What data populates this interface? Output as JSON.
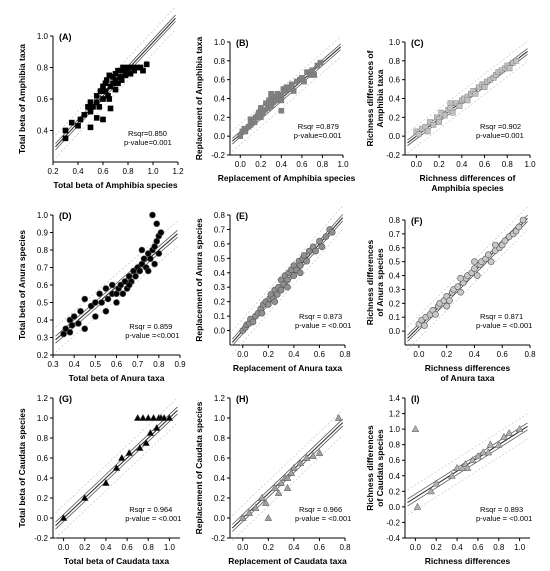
{
  "chart_data": [
    {
      "type": "scatter",
      "panel_label": "(A)",
      "xlabel": "Total beta of Amphibia species",
      "ylabel": "Total beta of  Amphibia taxa",
      "xlim": [
        0.2,
        1.2
      ],
      "ylim": [
        0.2,
        1.0
      ],
      "xticks": [
        "0.2",
        "0.4",
        "0.6",
        "0.8",
        "1.0",
        "1.2"
      ],
      "yticks": [
        "0.4",
        "0.6",
        "0.8",
        "1.0"
      ],
      "stats": [
        "Rsqr=0.850",
        "p-value=0.001"
      ],
      "marker": "square",
      "color": "#000000",
      "fit": {
        "slope": 0.85,
        "intercept": 0.11
      },
      "x": [
        0.3,
        0.3,
        0.35,
        0.4,
        0.42,
        0.45,
        0.48,
        0.5,
        0.5,
        0.52,
        0.55,
        0.55,
        0.55,
        0.57,
        0.58,
        0.6,
        0.6,
        0.62,
        0.62,
        0.63,
        0.64,
        0.65,
        0.65,
        0.66,
        0.68,
        0.68,
        0.7,
        0.7,
        0.7,
        0.72,
        0.72,
        0.74,
        0.75,
        0.75,
        0.76,
        0.78,
        0.78,
        0.8,
        0.8,
        0.82,
        0.84,
        0.85,
        0.88,
        0.9,
        0.92,
        0.95,
        0.6,
        0.66,
        0.5
      ],
      "y": [
        0.35,
        0.4,
        0.45,
        0.43,
        0.47,
        0.5,
        0.55,
        0.52,
        0.58,
        0.55,
        0.58,
        0.62,
        0.48,
        0.55,
        0.65,
        0.6,
        0.68,
        0.65,
        0.7,
        0.72,
        0.62,
        0.6,
        0.75,
        0.68,
        0.7,
        0.74,
        0.72,
        0.76,
        0.66,
        0.7,
        0.78,
        0.74,
        0.72,
        0.78,
        0.8,
        0.75,
        0.79,
        0.77,
        0.8,
        0.76,
        0.8,
        0.78,
        0.8,
        0.8,
        0.78,
        0.82,
        0.47,
        0.54,
        0.42
      ]
    },
    {
      "type": "scatter",
      "panel_label": "(B)",
      "xlabel": "Replacement of  Amphibia species",
      "ylabel": "Replacement of Amphibia taxa",
      "xlim": [
        -0.1,
        1.0
      ],
      "ylim": [
        -0.2,
        1.0
      ],
      "xticks": [
        "0.0",
        "0.2",
        "0.4",
        "0.6",
        "0.8",
        "1.0"
      ],
      "yticks": [
        "-0.2",
        "0.0",
        "0.2",
        "0.4",
        "0.6",
        "0.8",
        "1.0"
      ],
      "stats": [
        "Rsqr =0.879",
        "p-value=0.001"
      ],
      "marker": "square",
      "color": "#808080",
      "fit": {
        "slope": 0.95,
        "intercept": 0.02
      },
      "x": [
        0.0,
        0.02,
        0.04,
        0.05,
        0.08,
        0.1,
        0.1,
        0.12,
        0.14,
        0.15,
        0.17,
        0.18,
        0.2,
        0.2,
        0.22,
        0.24,
        0.25,
        0.27,
        0.28,
        0.3,
        0.3,
        0.32,
        0.33,
        0.35,
        0.36,
        0.38,
        0.4,
        0.4,
        0.42,
        0.44,
        0.45,
        0.48,
        0.5,
        0.52,
        0.55,
        0.58,
        0.6,
        0.62,
        0.65,
        0.68,
        0.7,
        0.72,
        0.75,
        0.78,
        0.4,
        0.3
      ],
      "y": [
        0.0,
        0.05,
        0.08,
        0.05,
        0.1,
        0.12,
        0.18,
        0.15,
        0.15,
        0.2,
        0.22,
        0.25,
        0.2,
        0.3,
        0.25,
        0.28,
        0.35,
        0.3,
        0.38,
        0.4,
        0.32,
        0.36,
        0.42,
        0.38,
        0.45,
        0.42,
        0.44,
        0.38,
        0.5,
        0.48,
        0.52,
        0.5,
        0.55,
        0.48,
        0.58,
        0.6,
        0.62,
        0.58,
        0.68,
        0.65,
        0.7,
        0.65,
        0.75,
        0.78,
        0.27,
        0.45
      ]
    },
    {
      "type": "scatter",
      "panel_label": "(C)",
      "xlabel": "Richness differences of Amphibia species",
      "xlabel_lines": [
        "Richness differences of",
        "Amphibia species"
      ],
      "ylabel": "Richness differences of Amphibia taxa",
      "ylabel_lines": [
        "Richness differences of",
        "Amphibia taxa"
      ],
      "xlim": [
        -0.1,
        1.0
      ],
      "ylim": [
        -0.2,
        1.0
      ],
      "xticks": [
        "0.0",
        "0.2",
        "0.4",
        "0.6",
        "0.8",
        "1.0"
      ],
      "yticks": [
        "-0.2",
        "0.0",
        "0.2",
        "0.4",
        "0.6",
        "0.8",
        "1.0"
      ],
      "stats": [
        "Rsqr =0.902",
        "p-value=0.001"
      ],
      "marker": "square",
      "color": "#c0c0c0",
      "fit": {
        "slope": 0.92,
        "intercept": 0.0
      },
      "x": [
        0.0,
        0.02,
        0.05,
        0.08,
        0.1,
        0.12,
        0.15,
        0.18,
        0.2,
        0.22,
        0.25,
        0.28,
        0.3,
        0.32,
        0.35,
        0.38,
        0.4,
        0.42,
        0.45,
        0.48,
        0.5,
        0.52,
        0.55,
        0.58,
        0.6,
        0.62,
        0.65,
        0.68,
        0.7,
        0.72,
        0.75,
        0.78,
        0.8,
        0.82,
        0.85,
        0.88,
        0.3,
        0.45,
        0.6,
        0.2
      ],
      "y": [
        0.05,
        0.02,
        0.08,
        0.1,
        0.05,
        0.15,
        0.12,
        0.2,
        0.18,
        0.25,
        0.22,
        0.28,
        0.3,
        0.25,
        0.35,
        0.32,
        0.38,
        0.4,
        0.42,
        0.45,
        0.48,
        0.45,
        0.52,
        0.55,
        0.55,
        0.58,
        0.6,
        0.62,
        0.65,
        0.68,
        0.7,
        0.72,
        0.75,
        0.72,
        0.78,
        0.8,
        0.35,
        0.38,
        0.52,
        0.15
      ]
    },
    {
      "type": "scatter",
      "panel_label": "(D)",
      "xlabel": "Total beta of Anura taxa",
      "ylabel": "Total beta of Anura species",
      "xlim": [
        0.3,
        0.9
      ],
      "ylim": [
        0.2,
        1.0
      ],
      "xticks": [
        "0.3",
        "0.4",
        "0.5",
        "0.6",
        "0.7",
        "0.8",
        "0.9"
      ],
      "yticks": [
        "0.2",
        "0.3",
        "0.4",
        "0.5",
        "0.6",
        "0.7",
        "0.8",
        "0.9",
        "1.0"
      ],
      "stats": [
        "Rsqr = 0.859",
        "p-value =<0.001"
      ],
      "marker": "circle",
      "color": "#000000",
      "fit": {
        "slope": 1.05,
        "intercept": -0.04
      },
      "x": [
        0.35,
        0.36,
        0.38,
        0.39,
        0.4,
        0.42,
        0.43,
        0.45,
        0.48,
        0.5,
        0.52,
        0.53,
        0.55,
        0.56,
        0.58,
        0.58,
        0.6,
        0.61,
        0.62,
        0.63,
        0.64,
        0.65,
        0.66,
        0.67,
        0.68,
        0.69,
        0.7,
        0.71,
        0.72,
        0.73,
        0.74,
        0.75,
        0.75,
        0.76,
        0.77,
        0.78,
        0.78,
        0.79,
        0.8,
        0.8,
        0.81,
        0.79,
        0.77,
        0.72,
        0.66,
        0.6,
        0.55,
        0.5,
        0.45,
        0.38
      ],
      "y": [
        0.32,
        0.35,
        0.4,
        0.37,
        0.42,
        0.38,
        0.45,
        0.52,
        0.48,
        0.5,
        0.55,
        0.5,
        0.58,
        0.52,
        0.55,
        0.6,
        0.55,
        0.58,
        0.6,
        0.55,
        0.62,
        0.58,
        0.65,
        0.62,
        0.68,
        0.65,
        0.7,
        0.68,
        0.72,
        0.75,
        0.7,
        0.78,
        0.68,
        0.75,
        0.8,
        0.82,
        0.72,
        0.85,
        0.88,
        0.78,
        0.9,
        0.95,
        1.0,
        0.8,
        0.6,
        0.5,
        0.45,
        0.42,
        0.35,
        0.33
      ]
    },
    {
      "type": "scatter",
      "panel_label": "(E)",
      "xlabel": "Replacement of Anura taxa",
      "ylabel": "Replacement of Anura species",
      "xlim": [
        -0.1,
        0.8
      ],
      "ylim": [
        -0.1,
        0.8
      ],
      "xticks": [
        "0.0",
        "0.2",
        "0.4",
        "0.6",
        "0.8"
      ],
      "yticks": [
        "0.0",
        "0.1",
        "0.2",
        "0.3",
        "0.4",
        "0.5",
        "0.6",
        "0.7",
        "0.8"
      ],
      "stats": [
        "Rsqr = 0.873",
        "p-value = <0.001"
      ],
      "marker": "circle",
      "color": "#909090",
      "fit": {
        "slope": 1.0,
        "intercept": 0.0
      },
      "x": [
        0.0,
        0.02,
        0.03,
        0.05,
        0.06,
        0.08,
        0.1,
        0.12,
        0.14,
        0.15,
        0.16,
        0.18,
        0.2,
        0.21,
        0.22,
        0.24,
        0.25,
        0.27,
        0.28,
        0.3,
        0.3,
        0.32,
        0.33,
        0.35,
        0.36,
        0.38,
        0.4,
        0.4,
        0.42,
        0.44,
        0.45,
        0.47,
        0.48,
        0.5,
        0.52,
        0.55,
        0.57,
        0.6,
        0.62,
        0.65,
        0.68,
        0.7,
        0.25,
        0.35,
        0.45
      ],
      "y": [
        0.0,
        0.02,
        0.04,
        0.05,
        0.08,
        0.06,
        0.1,
        0.12,
        0.15,
        0.12,
        0.18,
        0.2,
        0.18,
        0.22,
        0.25,
        0.22,
        0.28,
        0.25,
        0.3,
        0.28,
        0.35,
        0.32,
        0.38,
        0.35,
        0.4,
        0.42,
        0.38,
        0.45,
        0.42,
        0.48,
        0.45,
        0.5,
        0.52,
        0.48,
        0.55,
        0.58,
        0.55,
        0.62,
        0.58,
        0.65,
        0.7,
        0.68,
        0.2,
        0.3,
        0.4
      ]
    },
    {
      "type": "scatter",
      "panel_label": "(F)",
      "xlabel": "Richness differences of Anura taxa",
      "xlabel_lines": [
        "Richness differences",
        "of Anura taxa"
      ],
      "ylabel": "Richness differences of Anura species",
      "ylabel_lines": [
        "Richness differences",
        "of Anura species"
      ],
      "xlim": [
        -0.1,
        0.8
      ],
      "ylim": [
        -0.1,
        0.8
      ],
      "xticks": [
        "0.0",
        "0.2",
        "0.4",
        "0.6",
        "0.8"
      ],
      "yticks": [
        "0.0",
        "0.1",
        "0.2",
        "0.3",
        "0.4",
        "0.5",
        "0.6",
        "0.7",
        "0.8"
      ],
      "stats": [
        "Rsqr = 0.871",
        "p-value = <0.001"
      ],
      "marker": "circle",
      "color": "#c8c8c8",
      "fit": {
        "slope": 1.0,
        "intercept": 0.03
      },
      "x": [
        0.0,
        0.02,
        0.04,
        0.05,
        0.08,
        0.1,
        0.12,
        0.14,
        0.15,
        0.18,
        0.2,
        0.22,
        0.24,
        0.25,
        0.28,
        0.3,
        0.32,
        0.34,
        0.35,
        0.38,
        0.4,
        0.42,
        0.44,
        0.45,
        0.48,
        0.5,
        0.52,
        0.55,
        0.58,
        0.6,
        0.62,
        0.65,
        0.68,
        0.7,
        0.72,
        0.75,
        0.3,
        0.4,
        0.2,
        0.55
      ],
      "y": [
        0.05,
        0.08,
        0.04,
        0.1,
        0.12,
        0.15,
        0.12,
        0.18,
        0.2,
        0.22,
        0.25,
        0.22,
        0.28,
        0.3,
        0.32,
        0.28,
        0.35,
        0.38,
        0.4,
        0.42,
        0.45,
        0.4,
        0.48,
        0.5,
        0.52,
        0.55,
        0.5,
        0.58,
        0.6,
        0.62,
        0.65,
        0.68,
        0.7,
        0.72,
        0.75,
        0.8,
        0.38,
        0.5,
        0.18,
        0.62
      ]
    },
    {
      "type": "scatter",
      "panel_label": "(G)",
      "xlabel": "Total beta of Caudata taxa",
      "ylabel": "Total beta of Caudata species",
      "xlim": [
        -0.1,
        1.1
      ],
      "ylim": [
        -0.2,
        1.2
      ],
      "xticks": [
        "0.0",
        "0.2",
        "0.4",
        "0.6",
        "0.8",
        "1.0"
      ],
      "yticks": [
        "-0.2",
        "0.0",
        "0.2",
        "0.4",
        "0.6",
        "0.8",
        "1.0",
        "1.2"
      ],
      "stats": [
        "Rsqr = 0.964",
        "p-value = <0.001"
      ],
      "marker": "triangle",
      "color": "#000000",
      "fit": {
        "slope": 1.0,
        "intercept": 0.0
      },
      "x": [
        0.0,
        0.2,
        0.4,
        0.5,
        0.55,
        0.62,
        0.7,
        0.72,
        0.75,
        0.78,
        0.8,
        0.82,
        0.85,
        0.88,
        0.9,
        0.92,
        0.95,
        1.0
      ],
      "y": [
        0.0,
        0.2,
        0.35,
        0.5,
        0.6,
        0.65,
        1.0,
        0.7,
        1.0,
        0.75,
        1.0,
        0.85,
        1.0,
        0.9,
        1.0,
        1.0,
        1.0,
        1.0
      ]
    },
    {
      "type": "scatter",
      "panel_label": "(H)",
      "xlabel": "Replacement of Caudata taxa",
      "ylabel": "Replacement of Caudata species",
      "xlim": [
        -0.1,
        0.8
      ],
      "ylim": [
        -0.2,
        1.2
      ],
      "xticks": [
        "0.0",
        "0.2",
        "0.4",
        "0.6",
        "0.8"
      ],
      "yticks": [
        "-0.2",
        "0.0",
        "0.2",
        "0.4",
        "0.6",
        "0.8",
        "1.0",
        "1.2"
      ],
      "stats": [
        "Rsqr = 0.966",
        "p-value = <0.001"
      ],
      "marker": "triangle",
      "color": "#a0a0a0",
      "fit": {
        "slope": 1.22,
        "intercept": 0.0
      },
      "x": [
        0.0,
        0.05,
        0.1,
        0.15,
        0.18,
        0.2,
        0.25,
        0.28,
        0.3,
        0.33,
        0.35,
        0.38,
        0.4,
        0.45,
        0.5,
        0.55,
        0.6,
        0.75,
        0.35
      ],
      "y": [
        0.0,
        0.05,
        0.1,
        0.2,
        0.15,
        0.0,
        0.3,
        0.25,
        0.35,
        0.4,
        0.4,
        0.45,
        0.5,
        0.55,
        0.6,
        0.62,
        0.65,
        1.0,
        0.3
      ]
    },
    {
      "type": "scatter",
      "panel_label": "(I)",
      "xlabel": "Richness differences of Caudata taxa",
      "xlabel_lines": [
        "Richness differences",
        "of Caudata taxa"
      ],
      "ylabel": "Richness differences of Caudata species",
      "ylabel_lines": [
        "Richness differences",
        "of Caudata species"
      ],
      "xlim": [
        -0.1,
        1.1
      ],
      "ylim": [
        -0.4,
        1.4
      ],
      "xticks": [
        "0.0",
        "0.2",
        "0.4",
        "0.6",
        "0.8",
        "1.0"
      ],
      "yticks": [
        "-0.4",
        "-0.2",
        "0.0",
        "0.2",
        "0.4",
        "0.6",
        "0.8",
        "1.0",
        "1.2",
        "1.4"
      ],
      "stats": [
        "Rsqr = 0.893",
        "p-value = <0.001"
      ],
      "marker": "triangle",
      "color": "#b0b0b0",
      "fit": {
        "slope": 0.85,
        "intercept": 0.12
      },
      "x": [
        0.0,
        0.02,
        0.15,
        0.2,
        0.35,
        0.4,
        0.45,
        0.48,
        0.5,
        0.55,
        0.6,
        0.65,
        0.7,
        0.72,
        0.8,
        0.85,
        0.9,
        1.0
      ],
      "y": [
        1.0,
        0.0,
        0.2,
        0.3,
        0.4,
        0.5,
        0.5,
        0.55,
        0.5,
        0.6,
        0.65,
        0.7,
        0.7,
        0.8,
        0.8,
        0.9,
        0.95,
        1.0
      ]
    }
  ]
}
